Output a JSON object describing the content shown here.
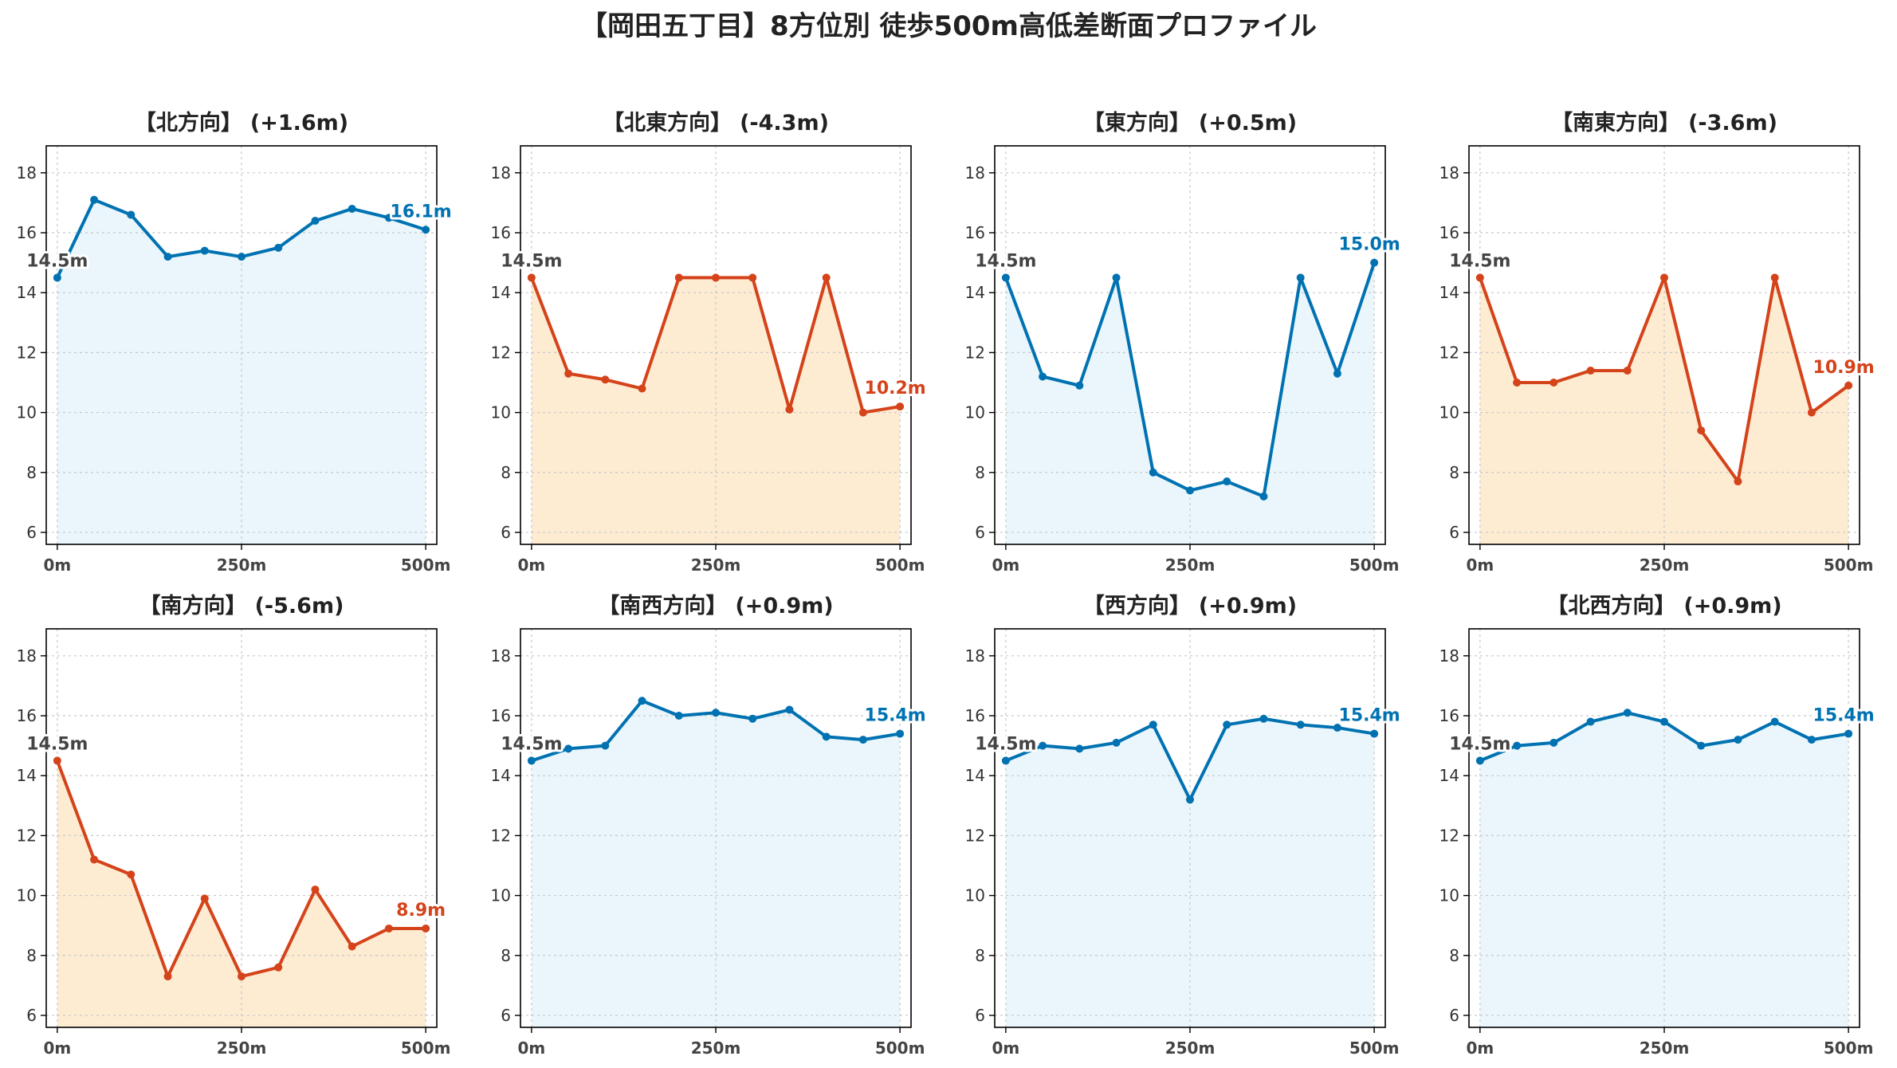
{
  "title": "【岡田五丁目】8方位別 徒歩500m高低差断面プロファイル",
  "colors": {
    "rise_line": "#0072B2",
    "rise_fill": "#EAF6FB",
    "fall_line": "#D4431A",
    "fall_fill": "#FDEBD2",
    "start_label": "#444444"
  },
  "chart_data": [
    {
      "type": "area",
      "direction": "【北方向】",
      "change": "(+1.6m)",
      "trend": "rise",
      "x": [
        0,
        50,
        100,
        150,
        200,
        250,
        300,
        350,
        400,
        450,
        500
      ],
      "y": [
        14.5,
        17.1,
        16.6,
        15.2,
        15.4,
        15.2,
        15.5,
        16.4,
        16.8,
        16.5,
        16.1
      ],
      "xticks": [
        "0m",
        "250m",
        "500m"
      ],
      "yticks": [
        6,
        8,
        10,
        12,
        14,
        16,
        18
      ],
      "ylim": [
        5.6,
        18.9
      ],
      "xlim": [
        -15,
        515
      ],
      "start_label": "14.5m",
      "end_label": "16.1m",
      "grid": true
    },
    {
      "type": "area",
      "direction": "【北東方向】",
      "change": "(-4.3m)",
      "trend": "fall",
      "x": [
        0,
        50,
        100,
        150,
        200,
        250,
        300,
        350,
        400,
        450,
        500
      ],
      "y": [
        14.5,
        11.3,
        11.1,
        10.8,
        14.5,
        14.5,
        14.5,
        10.1,
        14.5,
        10.0,
        10.2
      ],
      "xticks": [
        "0m",
        "250m",
        "500m"
      ],
      "yticks": [
        6,
        8,
        10,
        12,
        14,
        16,
        18
      ],
      "ylim": [
        5.6,
        18.9
      ],
      "xlim": [
        -15,
        515
      ],
      "start_label": "14.5m",
      "end_label": "10.2m",
      "grid": true
    },
    {
      "type": "area",
      "direction": "【東方向】",
      "change": "(+0.5m)",
      "trend": "rise",
      "x": [
        0,
        50,
        100,
        150,
        200,
        250,
        300,
        350,
        400,
        450,
        500
      ],
      "y": [
        14.5,
        11.2,
        10.9,
        14.5,
        8.0,
        7.4,
        7.7,
        7.2,
        14.5,
        11.3,
        15.0
      ],
      "xticks": [
        "0m",
        "250m",
        "500m"
      ],
      "yticks": [
        6,
        8,
        10,
        12,
        14,
        16,
        18
      ],
      "ylim": [
        5.6,
        18.9
      ],
      "xlim": [
        -15,
        515
      ],
      "start_label": "14.5m",
      "end_label": "15.0m",
      "grid": true
    },
    {
      "type": "area",
      "direction": "【南東方向】",
      "change": "(-3.6m)",
      "trend": "fall",
      "x": [
        0,
        50,
        100,
        150,
        200,
        250,
        300,
        350,
        400,
        450,
        500
      ],
      "y": [
        14.5,
        11.0,
        11.0,
        11.4,
        11.4,
        14.5,
        9.4,
        7.7,
        14.5,
        10.0,
        10.9
      ],
      "xticks": [
        "0m",
        "250m",
        "500m"
      ],
      "yticks": [
        6,
        8,
        10,
        12,
        14,
        16,
        18
      ],
      "ylim": [
        5.6,
        18.9
      ],
      "xlim": [
        -15,
        515
      ],
      "start_label": "14.5m",
      "end_label": "10.9m",
      "grid": true
    },
    {
      "type": "area",
      "direction": "【南方向】",
      "change": "(-5.6m)",
      "trend": "fall",
      "x": [
        0,
        50,
        100,
        150,
        200,
        250,
        300,
        350,
        400,
        450,
        500
      ],
      "y": [
        14.5,
        11.2,
        10.7,
        7.3,
        9.9,
        7.3,
        7.6,
        10.2,
        8.3,
        8.9,
        8.9
      ],
      "xticks": [
        "0m",
        "250m",
        "500m"
      ],
      "yticks": [
        6,
        8,
        10,
        12,
        14,
        16,
        18
      ],
      "ylim": [
        5.6,
        18.9
      ],
      "xlim": [
        -15,
        515
      ],
      "start_label": "14.5m",
      "end_label": "8.9m",
      "grid": true
    },
    {
      "type": "area",
      "direction": "【南西方向】",
      "change": "(+0.9m)",
      "trend": "rise",
      "x": [
        0,
        50,
        100,
        150,
        200,
        250,
        300,
        350,
        400,
        450,
        500
      ],
      "y": [
        14.5,
        14.9,
        15.0,
        16.5,
        16.0,
        16.1,
        15.9,
        16.2,
        15.3,
        15.2,
        15.4
      ],
      "xticks": [
        "0m",
        "250m",
        "500m"
      ],
      "yticks": [
        6,
        8,
        10,
        12,
        14,
        16,
        18
      ],
      "ylim": [
        5.6,
        18.9
      ],
      "xlim": [
        -15,
        515
      ],
      "start_label": "14.5m",
      "end_label": "15.4m",
      "grid": true
    },
    {
      "type": "area",
      "direction": "【西方向】",
      "change": "(+0.9m)",
      "trend": "rise",
      "x": [
        0,
        50,
        100,
        150,
        200,
        250,
        300,
        350,
        400,
        450,
        500
      ],
      "y": [
        14.5,
        15.0,
        14.9,
        15.1,
        15.7,
        13.2,
        15.7,
        15.9,
        15.7,
        15.6,
        15.4
      ],
      "xticks": [
        "0m",
        "250m",
        "500m"
      ],
      "yticks": [
        6,
        8,
        10,
        12,
        14,
        16,
        18
      ],
      "ylim": [
        5.6,
        18.9
      ],
      "xlim": [
        -15,
        515
      ],
      "start_label": "14.5m",
      "end_label": "15.4m",
      "grid": true
    },
    {
      "type": "area",
      "direction": "【北西方向】",
      "change": "(+0.9m)",
      "trend": "rise",
      "x": [
        0,
        50,
        100,
        150,
        200,
        250,
        300,
        350,
        400,
        450,
        500
      ],
      "y": [
        14.5,
        15.0,
        15.1,
        15.8,
        16.1,
        15.8,
        15.0,
        15.2,
        15.8,
        15.2,
        15.4
      ],
      "xticks": [
        "0m",
        "250m",
        "500m"
      ],
      "yticks": [
        6,
        8,
        10,
        12,
        14,
        16,
        18
      ],
      "ylim": [
        5.6,
        18.9
      ],
      "xlim": [
        -15,
        515
      ],
      "start_label": "14.5m",
      "end_label": "15.4m",
      "grid": true
    }
  ]
}
